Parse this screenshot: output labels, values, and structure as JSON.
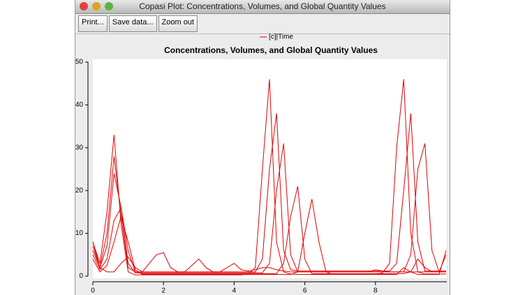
{
  "window": {
    "title": "Copasi Plot: Concentrations, Volumes, and Global Quantity Values"
  },
  "toolbar": {
    "buttons": [
      "Print...",
      "Save data...",
      "Zoom out"
    ]
  },
  "chart_data": {
    "type": "line",
    "title": "Concentrations, Volumes, and Global Quantity Values",
    "x": [
      0,
      0.2,
      0.4,
      0.6,
      0.8,
      1,
      1.2,
      1.4,
      1.6,
      1.8,
      2,
      2.2,
      2.4,
      2.6,
      2.8,
      3,
      3.2,
      3.4,
      3.6,
      3.8,
      4,
      4.2,
      4.4,
      4.6,
      4.8,
      5,
      5.2,
      5.4,
      5.6,
      5.8,
      6,
      6.2,
      6.4,
      6.6,
      6.8,
      7,
      7.2,
      7.4,
      7.6,
      7.8,
      8,
      8.2,
      8.4,
      8.6,
      8.8,
      9,
      9.2,
      9.4,
      9.6,
      9.8,
      10
    ],
    "xlim": [
      0,
      10
    ],
    "xticks": [
      0,
      2,
      4,
      6,
      8
    ],
    "ylim": [
      0,
      50
    ],
    "yticks": [
      0,
      10,
      20,
      30,
      40,
      50
    ],
    "series": [
      {
        "name": "[c]|Time",
        "color": "#e00000",
        "values": [
          8,
          3,
          15,
          33,
          12,
          1,
          0.3,
          0.3,
          0.3,
          0.3,
          0.3,
          0.3,
          0.3,
          0.3,
          0.3,
          0.3,
          0.3,
          0.3,
          0.3,
          0.3,
          0.3,
          0.3,
          0.5,
          2,
          25,
          46,
          8,
          1,
          0.5,
          0.4,
          0.4,
          0.4,
          0.4,
          0.4,
          0.4,
          0.4,
          0.4,
          0.4,
          0.4,
          0.4,
          0.4,
          0.8,
          3,
          30,
          46,
          10,
          1,
          0.5,
          0.5,
          0.5,
          0.5
        ]
      },
      {
        "color": "#e00000",
        "values": [
          7,
          2,
          10,
          28,
          14,
          2,
          1,
          1,
          1,
          1,
          1,
          1,
          1,
          1,
          1,
          1,
          1,
          1,
          1,
          1,
          1,
          1,
          1,
          1,
          4,
          25,
          38,
          6,
          1.5,
          1.2,
          1.2,
          1.2,
          1.2,
          1.2,
          1.2,
          1.2,
          1.2,
          1.2,
          1.2,
          1.2,
          1.2,
          1.2,
          1.2,
          3,
          20,
          38,
          8,
          1.2,
          1.2,
          1.2,
          1.2
        ]
      },
      {
        "color": "#e00000",
        "values": [
          6,
          2,
          7,
          24,
          16,
          3,
          0.8,
          0.8,
          0.8,
          0.8,
          0.8,
          0.8,
          0.8,
          0.8,
          0.8,
          0.8,
          0.8,
          0.8,
          0.8,
          0.8,
          0.8,
          0.8,
          0.8,
          0.8,
          0.8,
          3,
          20,
          31,
          5,
          1,
          1,
          1,
          1,
          1,
          1,
          1,
          1,
          1,
          1,
          1,
          1,
          1,
          1,
          1,
          1,
          5,
          25,
          31,
          6,
          1,
          1
        ]
      },
      {
        "color": "#e00000",
        "values": [
          5,
          1.5,
          4,
          13,
          16,
          6,
          1,
          0.6,
          0.6,
          0.6,
          0.6,
          0.6,
          0.6,
          0.6,
          0.6,
          0.6,
          0.6,
          0.6,
          0.6,
          0.6,
          0.6,
          0.6,
          0.6,
          0.6,
          0.6,
          0.6,
          0.6,
          3,
          14,
          21,
          4,
          0.6,
          0.6,
          0.6,
          0.6,
          0.6,
          0.6,
          0.6,
          0.6,
          0.6,
          0.6,
          0.6,
          0.6,
          0.6,
          0.6,
          1,
          4,
          2,
          1,
          1,
          5
        ]
      },
      {
        "color": "#e00000",
        "values": [
          4,
          1,
          2.5,
          8,
          14,
          8,
          1.5,
          0.4,
          0.4,
          0.4,
          0.4,
          0.4,
          0.4,
          0.4,
          0.4,
          0.4,
          0.4,
          0.4,
          0.4,
          0.4,
          0.4,
          0.4,
          0.4,
          0.4,
          0.4,
          0.4,
          0.4,
          0.4,
          0.4,
          1,
          10,
          18,
          8,
          1,
          0.4,
          0.4,
          0.4,
          0.4,
          0.4,
          0.4,
          0.4,
          0.4,
          0.4,
          0.4,
          2,
          1,
          0.4,
          0.4,
          0.4,
          0.4,
          6
        ]
      },
      {
        "color": "#e00000",
        "values": [
          8,
          2,
          1,
          1,
          3,
          4.5,
          2,
          1,
          3,
          5,
          5.5,
          2,
          1,
          1,
          2.5,
          4,
          2,
          1,
          1,
          2,
          3,
          1.5,
          1.2,
          1.5,
          2,
          2,
          1.5,
          1.2,
          1,
          1,
          1,
          1,
          1,
          1,
          1,
          1,
          1,
          1,
          1,
          1,
          1.5,
          1.2,
          1,
          1,
          1,
          1,
          1,
          1,
          1,
          1,
          1
        ]
      }
    ]
  }
}
